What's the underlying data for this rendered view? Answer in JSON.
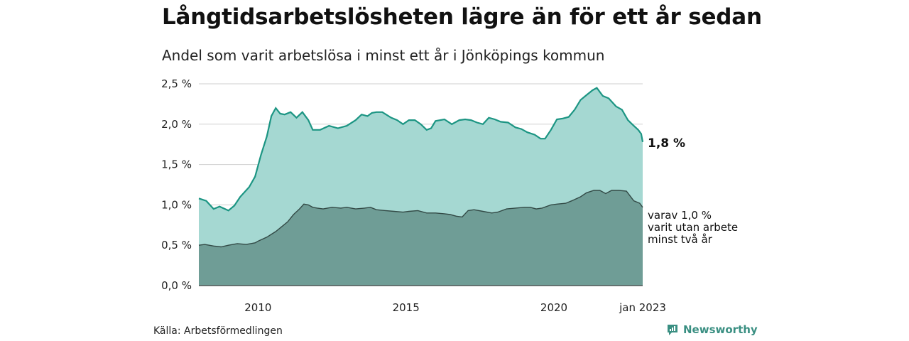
{
  "title": "Långtidsarbetslösheten lägre än för ett år sedan",
  "subtitle": "Andel som varit arbetslösa i minst ett år i Jönköpings kommun",
  "source": "Källa: Arbetsförmedlingen",
  "brand": {
    "name": "Newsworthy",
    "icon": "newsworthy-logo-icon",
    "color": "#3a8f82"
  },
  "chart_data": {
    "type": "area",
    "title": "Långtidsarbetslösheten lägre än för ett år sedan",
    "subtitle": "Andel som varit arbetslösa i minst ett år i Jönköpings kommun",
    "x_range": [
      2008.0,
      2023.0
    ],
    "ylim": [
      0,
      2.5
    ],
    "y_ticks": [
      0,
      0.5,
      1.0,
      1.5,
      2.0,
      2.5
    ],
    "y_tick_labels": [
      "0,0 %",
      "0,5 %",
      "1,0 %",
      "1,5 %",
      "2,0 %",
      "2,5 %"
    ],
    "x_ticks": [
      2010,
      2015,
      2020,
      2023
    ],
    "x_tick_labels": [
      "2010",
      "2015",
      "2020",
      "jan 2023"
    ],
    "grid": "horizontal",
    "colors": {
      "outer_fill": "#a5d8d2",
      "outer_line": "#1c9583",
      "inner_fill": "#6f9d96",
      "inner_line": "#334a46",
      "grid": "#cfcfcf"
    },
    "series": [
      {
        "name": "minst ett år",
        "end_label": "1,8 %",
        "points": [
          [
            2008.0,
            1.08
          ],
          [
            2008.25,
            1.05
          ],
          [
            2008.5,
            0.95
          ],
          [
            2008.7,
            0.98
          ],
          [
            2009.0,
            0.93
          ],
          [
            2009.2,
            0.99
          ],
          [
            2009.4,
            1.1
          ],
          [
            2009.7,
            1.22
          ],
          [
            2009.9,
            1.35
          ],
          [
            2010.1,
            1.62
          ],
          [
            2010.3,
            1.85
          ],
          [
            2010.45,
            2.1
          ],
          [
            2010.6,
            2.2
          ],
          [
            2010.75,
            2.13
          ],
          [
            2010.9,
            2.12
          ],
          [
            2011.1,
            2.15
          ],
          [
            2011.3,
            2.08
          ],
          [
            2011.5,
            2.15
          ],
          [
            2011.7,
            2.05
          ],
          [
            2011.85,
            1.93
          ],
          [
            2012.1,
            1.93
          ],
          [
            2012.4,
            1.98
          ],
          [
            2012.7,
            1.95
          ],
          [
            2013.0,
            1.98
          ],
          [
            2013.3,
            2.05
          ],
          [
            2013.5,
            2.12
          ],
          [
            2013.7,
            2.1
          ],
          [
            2013.85,
            2.14
          ],
          [
            2014.0,
            2.15
          ],
          [
            2014.2,
            2.15
          ],
          [
            2014.5,
            2.08
          ],
          [
            2014.7,
            2.05
          ],
          [
            2014.9,
            2.0
          ],
          [
            2015.1,
            2.05
          ],
          [
            2015.3,
            2.05
          ],
          [
            2015.5,
            2.0
          ],
          [
            2015.7,
            1.93
          ],
          [
            2015.85,
            1.95
          ],
          [
            2016.0,
            2.04
          ],
          [
            2016.3,
            2.06
          ],
          [
            2016.55,
            2.0
          ],
          [
            2016.8,
            2.05
          ],
          [
            2017.0,
            2.06
          ],
          [
            2017.2,
            2.05
          ],
          [
            2017.4,
            2.02
          ],
          [
            2017.6,
            2.0
          ],
          [
            2017.8,
            2.08
          ],
          [
            2018.0,
            2.06
          ],
          [
            2018.2,
            2.03
          ],
          [
            2018.45,
            2.02
          ],
          [
            2018.7,
            1.96
          ],
          [
            2018.9,
            1.94
          ],
          [
            2019.1,
            1.9
          ],
          [
            2019.35,
            1.87
          ],
          [
            2019.55,
            1.82
          ],
          [
            2019.7,
            1.82
          ],
          [
            2019.9,
            1.93
          ],
          [
            2020.1,
            2.06
          ],
          [
            2020.3,
            2.07
          ],
          [
            2020.5,
            2.09
          ],
          [
            2020.7,
            2.18
          ],
          [
            2020.9,
            2.3
          ],
          [
            2021.1,
            2.36
          ],
          [
            2021.3,
            2.42
          ],
          [
            2021.45,
            2.45
          ],
          [
            2021.65,
            2.35
          ],
          [
            2021.85,
            2.32
          ],
          [
            2022.1,
            2.22
          ],
          [
            2022.3,
            2.18
          ],
          [
            2022.5,
            2.05
          ],
          [
            2022.7,
            1.98
          ],
          [
            2022.85,
            1.93
          ],
          [
            2022.95,
            1.88
          ],
          [
            2023.0,
            1.78
          ]
        ]
      },
      {
        "name": "varav 1,0 % varit utan arbete minst två år",
        "end_label_lines": [
          "varav 1,0 %",
          "varit utan arbete",
          "minst två år"
        ],
        "points": [
          [
            2008.0,
            0.5
          ],
          [
            2008.2,
            0.51
          ],
          [
            2008.5,
            0.49
          ],
          [
            2008.75,
            0.48
          ],
          [
            2009.0,
            0.5
          ],
          [
            2009.3,
            0.52
          ],
          [
            2009.6,
            0.51
          ],
          [
            2009.9,
            0.53
          ],
          [
            2010.0,
            0.55
          ],
          [
            2010.3,
            0.6
          ],
          [
            2010.6,
            0.67
          ],
          [
            2010.8,
            0.73
          ],
          [
            2011.0,
            0.79
          ],
          [
            2011.2,
            0.88
          ],
          [
            2011.4,
            0.95
          ],
          [
            2011.55,
            1.01
          ],
          [
            2011.7,
            1.0
          ],
          [
            2011.85,
            0.97
          ],
          [
            2012.0,
            0.96
          ],
          [
            2012.2,
            0.95
          ],
          [
            2012.5,
            0.97
          ],
          [
            2012.8,
            0.96
          ],
          [
            2013.0,
            0.97
          ],
          [
            2013.3,
            0.95
          ],
          [
            2013.6,
            0.96
          ],
          [
            2013.8,
            0.97
          ],
          [
            2014.0,
            0.94
          ],
          [
            2014.3,
            0.93
          ],
          [
            2014.6,
            0.92
          ],
          [
            2014.9,
            0.91
          ],
          [
            2015.1,
            0.92
          ],
          [
            2015.4,
            0.93
          ],
          [
            2015.7,
            0.9
          ],
          [
            2016.0,
            0.9
          ],
          [
            2016.3,
            0.89
          ],
          [
            2016.5,
            0.88
          ],
          [
            2016.7,
            0.86
          ],
          [
            2016.9,
            0.85
          ],
          [
            2017.1,
            0.93
          ],
          [
            2017.3,
            0.94
          ],
          [
            2017.6,
            0.92
          ],
          [
            2017.9,
            0.9
          ],
          [
            2018.1,
            0.91
          ],
          [
            2018.4,
            0.95
          ],
          [
            2018.7,
            0.96
          ],
          [
            2019.0,
            0.97
          ],
          [
            2019.2,
            0.97
          ],
          [
            2019.4,
            0.95
          ],
          [
            2019.6,
            0.96
          ],
          [
            2019.9,
            1.0
          ],
          [
            2020.1,
            1.01
          ],
          [
            2020.4,
            1.02
          ],
          [
            2020.6,
            1.05
          ],
          [
            2020.9,
            1.1
          ],
          [
            2021.1,
            1.15
          ],
          [
            2021.35,
            1.18
          ],
          [
            2021.55,
            1.18
          ],
          [
            2021.75,
            1.14
          ],
          [
            2021.95,
            1.18
          ],
          [
            2022.2,
            1.18
          ],
          [
            2022.45,
            1.17
          ],
          [
            2022.7,
            1.05
          ],
          [
            2022.9,
            1.02
          ],
          [
            2023.0,
            0.97
          ]
        ]
      }
    ]
  }
}
